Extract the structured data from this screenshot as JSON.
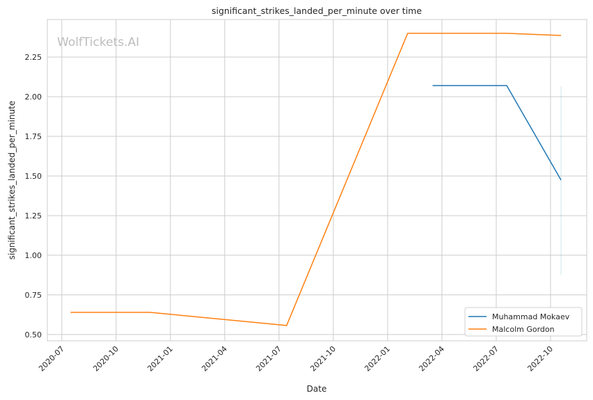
{
  "chart_data": {
    "type": "line",
    "title": "significant_strikes_landed_per_minute over time",
    "xlabel": "Date",
    "ylabel": "significant_strikes_landed_per_minute",
    "watermark": "WolfTickets.AI",
    "ylim": [
      0.46,
      2.487
    ],
    "xlim": [
      "2020-06-07",
      "2022-12-01"
    ],
    "yticks": [
      "0.50",
      "0.75",
      "1.00",
      "1.25",
      "1.50",
      "1.75",
      "2.00",
      "2.25"
    ],
    "xticks": [
      "2020-07",
      "2020-10",
      "2021-01",
      "2021-04",
      "2021-07",
      "2021-10",
      "2022-01",
      "2022-04",
      "2022-07",
      "2022-10"
    ],
    "grid": true,
    "legend_position": "lower-right",
    "series": [
      {
        "name": "Muhammad Mokaev",
        "color": "#1f77b4",
        "x": [
          "2022-03-16",
          "2022-07-19",
          "2022-10-19"
        ],
        "y": [
          2.07,
          2.07,
          1.474
        ],
        "ci": {
          "x": "2022-10-19",
          "low": 0.877,
          "high": 2.066
        }
      },
      {
        "name": "Malcolm Gordon",
        "color": "#ff7f0e",
        "x": [
          "2020-07-16",
          "2020-11-27",
          "2021-07-14",
          "2022-02-04",
          "2022-07-19",
          "2022-10-19"
        ],
        "y": [
          0.64,
          0.64,
          0.557,
          2.4,
          2.4,
          2.386
        ]
      }
    ]
  }
}
